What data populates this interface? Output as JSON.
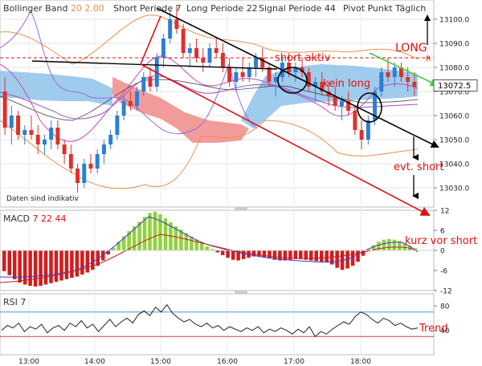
{
  "header": {
    "indicator_label": "Bollinger Band",
    "bb_period": "20",
    "bb_dev": "2.00",
    "short_label": "Short Periode",
    "short_value": "7",
    "long_label": "Long Periode",
    "long_value": "22",
    "signal_label": "Signal Periode",
    "signal_value": "44",
    "pivot_label": "Pivot Punkt",
    "pivot_value": "Täglich"
  },
  "notice": "Daten sind indikativ",
  "current_price": "13072.5",
  "pivot_r": "R",
  "annotations": {
    "long": "LONG",
    "short_aktiv": "short aktiv",
    "kein_long": "kein long",
    "evt_short": "evt. short",
    "kurz_vor_short": "kurz vor short",
    "trend": "Trend"
  },
  "rsi_label": "RSI",
  "rsi_period": "7",
  "macd_label": "MACD",
  "macd_params": [
    "7",
    "22",
    "44"
  ],
  "colors": {
    "up": "#2a7fd4",
    "down": "#e0302a",
    "cloud_blue": "#8ec2ea",
    "cloud_red": "#f08a8a",
    "bb": "#e8914a",
    "macd_pos": "#8fd33a",
    "macd_neg": "#d21c1c",
    "annot_red": "#e01010",
    "annot_green": "#3bd03b"
  },
  "chart_data": [
    {
      "type": "candlestick",
      "ylim": [
        13022,
        13108
      ],
      "yticks": [
        13030,
        13040,
        13050,
        13060,
        13070,
        13080,
        13090,
        13100
      ],
      "ytick_labels": [
        "13030.0",
        "13040.0",
        "13050.0",
        "13060.0",
        "13070.0",
        "13080.0",
        "13090.0",
        "13100.0"
      ],
      "xticks": [
        "13:00",
        "14:00",
        "15:00",
        "16:00",
        "17:00",
        "18:00"
      ],
      "last": 13072.5,
      "pivot": 13084,
      "candles": [
        [
          13070,
          13076,
          13052,
          13055
        ],
        [
          13055,
          13064,
          13048,
          13060
        ],
        [
          13060,
          13062,
          13050,
          13052
        ],
        [
          13052,
          13056,
          13048,
          13054
        ],
        [
          13054,
          13060,
          13050,
          13052
        ],
        [
          13052,
          13056,
          13044,
          13048
        ],
        [
          13048,
          13052,
          13044,
          13050
        ],
        [
          13050,
          13058,
          13046,
          13055
        ],
        [
          13055,
          13058,
          13046,
          13048
        ],
        [
          13048,
          13050,
          13040,
          13044
        ],
        [
          13044,
          13048,
          13036,
          13038
        ],
        [
          13038,
          13040,
          13028,
          13032
        ],
        [
          13032,
          13042,
          13030,
          13040
        ],
        [
          13040,
          13044,
          13036,
          13038
        ],
        [
          13038,
          13046,
          13036,
          13044
        ],
        [
          13044,
          13050,
          13040,
          13048
        ],
        [
          13048,
          13054,
          13046,
          13052
        ],
        [
          13052,
          13062,
          13050,
          13060
        ],
        [
          13060,
          13068,
          13058,
          13066
        ],
        [
          13066,
          13070,
          13062,
          13064
        ],
        [
          13064,
          13072,
          13062,
          13070
        ],
        [
          13070,
          13078,
          13068,
          13076
        ],
        [
          13076,
          13080,
          13070,
          13072
        ],
        [
          13072,
          13086,
          13070,
          13084
        ],
        [
          13084,
          13094,
          13080,
          13092
        ],
        [
          13092,
          13104,
          13090,
          13100
        ],
        [
          13100,
          13106,
          13094,
          13096
        ],
        [
          13096,
          13098,
          13084,
          13086
        ],
        [
          13086,
          13090,
          13080,
          13088
        ],
        [
          13088,
          13092,
          13082,
          13084
        ],
        [
          13084,
          13088,
          13078,
          13082
        ],
        [
          13082,
          13090,
          13080,
          13088
        ],
        [
          13088,
          13092,
          13084,
          13086
        ],
        [
          13086,
          13090,
          13078,
          13080
        ],
        [
          13080,
          13084,
          13072,
          13074
        ],
        [
          13074,
          13080,
          13070,
          13078
        ],
        [
          13078,
          13084,
          13074,
          13076
        ],
        [
          13076,
          13082,
          13074,
          13080
        ],
        [
          13080,
          13086,
          13076,
          13084
        ],
        [
          13084,
          13088,
          13078,
          13080
        ],
        [
          13080,
          13082,
          13072,
          13074
        ],
        [
          13074,
          13078,
          13068,
          13076
        ],
        [
          13076,
          13084,
          13074,
          13082
        ],
        [
          13082,
          13086,
          13076,
          13078
        ],
        [
          13078,
          13082,
          13074,
          13080
        ],
        [
          13080,
          13084,
          13076,
          13078
        ],
        [
          13078,
          13080,
          13070,
          13072
        ],
        [
          13072,
          13076,
          13066,
          13074
        ],
        [
          13074,
          13078,
          13068,
          13070
        ],
        [
          13070,
          13074,
          13064,
          13068
        ],
        [
          13068,
          13072,
          13062,
          13064
        ],
        [
          13064,
          13068,
          13058,
          13066
        ],
        [
          13066,
          13070,
          13060,
          13062
        ],
        [
          13062,
          13064,
          13052,
          13054
        ],
        [
          13054,
          13058,
          13046,
          13050
        ],
        [
          13050,
          13060,
          13048,
          13058
        ],
        [
          13058,
          13072,
          13056,
          13070
        ],
        [
          13070,
          13080,
          13068,
          13078
        ],
        [
          13078,
          13084,
          13074,
          13076
        ],
        [
          13076,
          13082,
          13072,
          13080
        ],
        [
          13080,
          13082,
          13074,
          13076
        ],
        [
          13076,
          13080,
          13070,
          13074
        ],
        [
          13074,
          13078,
          13068,
          13072
        ]
      ]
    },
    {
      "type": "bar",
      "name": "MACD",
      "ylim": [
        -12,
        12
      ],
      "yticks": [
        12,
        6,
        0,
        -6,
        -12
      ],
      "values": [
        -6.2,
        -7.4,
        -8.6,
        -9.6,
        -10.2,
        -10.6,
        -10.8,
        -10.6,
        -10.2,
        -9.8,
        -9.4,
        -9,
        -8.6,
        -8.2,
        -7.8,
        -7.2,
        -6.6,
        -5.8,
        -4.6,
        -3,
        -1.2,
        0.8,
        2.6,
        4.2,
        5.8,
        7.2,
        8.6,
        10,
        11.2,
        11.6,
        10.8,
        9.6,
        8.4,
        7.2,
        6.2,
        5.2,
        4.2,
        3.2,
        2.2,
        1.2,
        0.4,
        -0.6,
        -1.4,
        -2.2,
        -2.8,
        -3,
        -2.6,
        -2.2,
        -1.8,
        -1.8,
        -2,
        -2.4,
        -2.8,
        -3,
        -3,
        -2.8,
        -2.6,
        -2.6,
        -2.8,
        -3,
        -3.2,
        -3.4,
        -3.6,
        -4.2,
        -5.2,
        -5.8,
        -5.4,
        -4.6,
        -3.4,
        -1.6,
        0.4,
        1.6,
        2.6,
        3.2,
        3.4,
        3.2,
        2.8,
        2.2,
        1.4,
        0.6
      ]
    },
    {
      "type": "line",
      "name": "RSI",
      "ylim": [
        0,
        100
      ],
      "yticks": [
        80,
        40
      ],
      "levels": [
        70,
        30
      ],
      "values": [
        40,
        48,
        44,
        52,
        38,
        46,
        42,
        50,
        36,
        44,
        48,
        40,
        52,
        46,
        56,
        44,
        50,
        38,
        48,
        58,
        46,
        54,
        60,
        52,
        66,
        72,
        64,
        78,
        70,
        82,
        68,
        60,
        54,
        58,
        50,
        46,
        52,
        44,
        48,
        40,
        46,
        42,
        38,
        44,
        40,
        46,
        36,
        42,
        38,
        44,
        40,
        34,
        42,
        36,
        46,
        30,
        38,
        34,
        42,
        48,
        54,
        50,
        62,
        70,
        66,
        58,
        52,
        60,
        56,
        48,
        52,
        46,
        42,
        44
      ]
    }
  ]
}
